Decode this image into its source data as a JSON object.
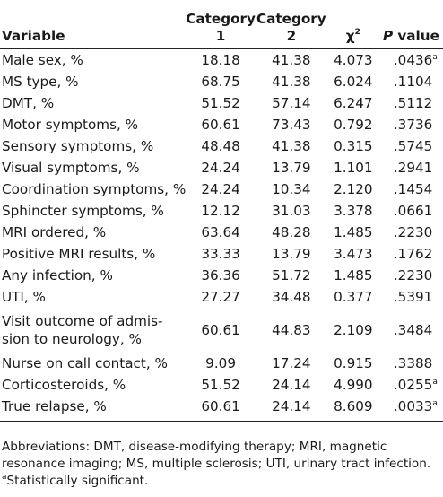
{
  "table": {
    "headers": {
      "variable": "Variable",
      "category1_line1": "Category",
      "category1_line2": "1",
      "category2_line1": "Category",
      "category2_line2": "2",
      "chi": "χ",
      "chi_sup": "2",
      "p_italic": "P",
      "p_rest": " value"
    },
    "rows": [
      {
        "variable": "Male sex, %",
        "c1": "18.18",
        "c2": "41.38",
        "chi": "4.073",
        "p": ".0436",
        "sig": "a"
      },
      {
        "variable": "MS type, %",
        "c1": "68.75",
        "c2": "41.38",
        "chi": "6.024",
        "p": ".1104",
        "sig": ""
      },
      {
        "variable": "DMT, %",
        "c1": "51.52",
        "c2": "57.14",
        "chi": "6.247",
        "p": ".5112",
        "sig": ""
      },
      {
        "variable": "Motor symptoms, %",
        "c1": "60.61",
        "c2": "73.43",
        "chi": "0.792",
        "p": ".3736",
        "sig": ""
      },
      {
        "variable": "Sensory symptoms, %",
        "c1": "48.48",
        "c2": "41.38",
        "chi": "0.315",
        "p": ".5745",
        "sig": ""
      },
      {
        "variable": "Visual symptoms, %",
        "c1": "24.24",
        "c2": "13.79",
        "chi": "1.101",
        "p": ".2941",
        "sig": ""
      },
      {
        "variable": "Coordination symptoms, %",
        "c1": "24.24",
        "c2": "10.34",
        "chi": "2.120",
        "p": ".1454",
        "sig": ""
      },
      {
        "variable": "Sphincter symptoms, %",
        "c1": "12.12",
        "c2": "31.03",
        "chi": "3.378",
        "p": ".0661",
        "sig": ""
      },
      {
        "variable": "MRI ordered, %",
        "c1": "63.64",
        "c2": "48.28",
        "chi": "1.485",
        "p": ".2230",
        "sig": ""
      },
      {
        "variable": "Positive MRI results, %",
        "c1": "33.33",
        "c2": "13.79",
        "chi": "3.473",
        "p": ".1762",
        "sig": ""
      },
      {
        "variable": "Any infection, %",
        "c1": "36.36",
        "c2": "51.72",
        "chi": "1.485",
        "p": ".2230",
        "sig": ""
      },
      {
        "variable": "UTI, %",
        "c1": "27.27",
        "c2": "34.48",
        "chi": "0.377",
        "p": ".5391",
        "sig": ""
      },
      {
        "variable": "Visit outcome of admis-\nsion to neurology, %",
        "c1": "60.61",
        "c2": "44.83",
        "chi": "2.109",
        "p": ".3484",
        "sig": ""
      },
      {
        "variable": "Nurse on call contact, %",
        "c1": "9.09",
        "c2": "17.24",
        "chi": "0.915",
        "p": ".3388",
        "sig": ""
      },
      {
        "variable": "Corticosteroids, %",
        "c1": "51.52",
        "c2": "24.14",
        "chi": "4.990",
        "p": ".0255",
        "sig": "a"
      },
      {
        "variable": "True relapse, %",
        "c1": "60.61",
        "c2": "24.14",
        "chi": "8.609",
        "p": ".0033",
        "sig": "a"
      }
    ]
  },
  "footnotes": {
    "abbreviations": "Abbreviations: DMT, disease-modifying therapy; MRI, magnetic resonance imaging; MS, multiple sclerosis; UTI, urinary tract infection.",
    "sig_marker": "a",
    "sig_text": "Statistically significant."
  }
}
